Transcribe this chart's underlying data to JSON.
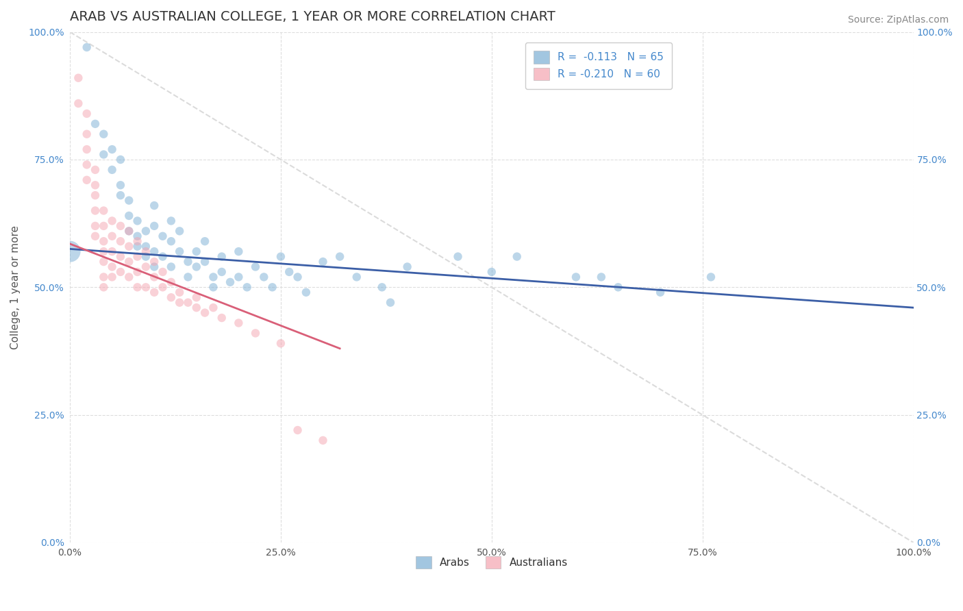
{
  "title": "ARAB VS AUSTRALIAN COLLEGE, 1 YEAR OR MORE CORRELATION CHART",
  "source": "Source: ZipAtlas.com",
  "ylabel": "College, 1 year or more",
  "xlim": [
    0.0,
    1.0
  ],
  "ylim": [
    0.0,
    1.0
  ],
  "xticks": [
    0.0,
    0.25,
    0.5,
    0.75,
    1.0
  ],
  "yticks": [
    0.0,
    0.25,
    0.5,
    0.75,
    1.0
  ],
  "xticklabels": [
    "0.0%",
    "25.0%",
    "50.0%",
    "75.0%",
    "100.0%"
  ],
  "yticklabels": [
    "0.0%",
    "25.0%",
    "50.0%",
    "75.0%",
    "100.0%"
  ],
  "blue_color": "#7BAFD4",
  "pink_color": "#F4A4B0",
  "blue_line_color": "#3B5EA6",
  "pink_line_color": "#D95F78",
  "diagonal_color": "#CCCCCC",
  "R_blue": -0.113,
  "N_blue": 65,
  "R_pink": -0.21,
  "N_pink": 60,
  "legend_label_blue": "Arabs",
  "legend_label_pink": "Australians",
  "blue_line_x": [
    0.0,
    1.0
  ],
  "blue_line_y": [
    0.575,
    0.46
  ],
  "pink_line_x": [
    0.0,
    0.32
  ],
  "pink_line_y": [
    0.585,
    0.38
  ],
  "blue_scatter": [
    [
      0.02,
      0.97
    ],
    [
      0.03,
      0.82
    ],
    [
      0.04,
      0.8
    ],
    [
      0.04,
      0.76
    ],
    [
      0.05,
      0.77
    ],
    [
      0.05,
      0.73
    ],
    [
      0.06,
      0.75
    ],
    [
      0.06,
      0.7
    ],
    [
      0.06,
      0.68
    ],
    [
      0.07,
      0.67
    ],
    [
      0.07,
      0.64
    ],
    [
      0.07,
      0.61
    ],
    [
      0.08,
      0.63
    ],
    [
      0.08,
      0.6
    ],
    [
      0.08,
      0.58
    ],
    [
      0.09,
      0.61
    ],
    [
      0.09,
      0.58
    ],
    [
      0.09,
      0.56
    ],
    [
      0.1,
      0.66
    ],
    [
      0.1,
      0.62
    ],
    [
      0.1,
      0.57
    ],
    [
      0.1,
      0.54
    ],
    [
      0.11,
      0.6
    ],
    [
      0.11,
      0.56
    ],
    [
      0.12,
      0.63
    ],
    [
      0.12,
      0.59
    ],
    [
      0.12,
      0.54
    ],
    [
      0.13,
      0.61
    ],
    [
      0.13,
      0.57
    ],
    [
      0.14,
      0.55
    ],
    [
      0.14,
      0.52
    ],
    [
      0.15,
      0.57
    ],
    [
      0.15,
      0.54
    ],
    [
      0.16,
      0.59
    ],
    [
      0.16,
      0.55
    ],
    [
      0.17,
      0.52
    ],
    [
      0.17,
      0.5
    ],
    [
      0.18,
      0.56
    ],
    [
      0.18,
      0.53
    ],
    [
      0.19,
      0.51
    ],
    [
      0.2,
      0.57
    ],
    [
      0.2,
      0.52
    ],
    [
      0.21,
      0.5
    ],
    [
      0.22,
      0.54
    ],
    [
      0.23,
      0.52
    ],
    [
      0.24,
      0.5
    ],
    [
      0.25,
      0.56
    ],
    [
      0.26,
      0.53
    ],
    [
      0.27,
      0.52
    ],
    [
      0.28,
      0.49
    ],
    [
      0.3,
      0.55
    ],
    [
      0.32,
      0.56
    ],
    [
      0.34,
      0.52
    ],
    [
      0.37,
      0.5
    ],
    [
      0.38,
      0.47
    ],
    [
      0.4,
      0.54
    ],
    [
      0.46,
      0.56
    ],
    [
      0.5,
      0.53
    ],
    [
      0.53,
      0.56
    ],
    [
      0.6,
      0.52
    ],
    [
      0.63,
      0.52
    ],
    [
      0.65,
      0.5
    ],
    [
      0.7,
      0.49
    ],
    [
      0.76,
      0.52
    ],
    [
      0.0,
      0.57
    ]
  ],
  "blue_dot_sizes": [
    80,
    80,
    80,
    80,
    80,
    80,
    80,
    80,
    80,
    80,
    80,
    80,
    80,
    80,
    80,
    80,
    80,
    80,
    80,
    80,
    80,
    80,
    80,
    80,
    80,
    80,
    80,
    80,
    80,
    80,
    80,
    80,
    80,
    80,
    80,
    80,
    80,
    80,
    80,
    80,
    80,
    80,
    80,
    80,
    80,
    80,
    80,
    80,
    80,
    80,
    80,
    80,
    80,
    80,
    80,
    80,
    80,
    80,
    80,
    80,
    80,
    80,
    80,
    80,
    500
  ],
  "pink_scatter": [
    [
      0.01,
      0.91
    ],
    [
      0.01,
      0.86
    ],
    [
      0.02,
      0.84
    ],
    [
      0.02,
      0.8
    ],
    [
      0.02,
      0.77
    ],
    [
      0.02,
      0.74
    ],
    [
      0.02,
      0.71
    ],
    [
      0.03,
      0.73
    ],
    [
      0.03,
      0.7
    ],
    [
      0.03,
      0.68
    ],
    [
      0.03,
      0.65
    ],
    [
      0.03,
      0.62
    ],
    [
      0.03,
      0.6
    ],
    [
      0.04,
      0.65
    ],
    [
      0.04,
      0.62
    ],
    [
      0.04,
      0.59
    ],
    [
      0.04,
      0.57
    ],
    [
      0.04,
      0.55
    ],
    [
      0.04,
      0.52
    ],
    [
      0.04,
      0.5
    ],
    [
      0.05,
      0.63
    ],
    [
      0.05,
      0.6
    ],
    [
      0.05,
      0.57
    ],
    [
      0.05,
      0.54
    ],
    [
      0.05,
      0.52
    ],
    [
      0.06,
      0.62
    ],
    [
      0.06,
      0.59
    ],
    [
      0.06,
      0.56
    ],
    [
      0.06,
      0.53
    ],
    [
      0.07,
      0.61
    ],
    [
      0.07,
      0.58
    ],
    [
      0.07,
      0.55
    ],
    [
      0.07,
      0.52
    ],
    [
      0.08,
      0.59
    ],
    [
      0.08,
      0.56
    ],
    [
      0.08,
      0.53
    ],
    [
      0.08,
      0.5
    ],
    [
      0.09,
      0.57
    ],
    [
      0.09,
      0.54
    ],
    [
      0.09,
      0.5
    ],
    [
      0.1,
      0.55
    ],
    [
      0.1,
      0.52
    ],
    [
      0.1,
      0.49
    ],
    [
      0.11,
      0.53
    ],
    [
      0.11,
      0.5
    ],
    [
      0.12,
      0.51
    ],
    [
      0.12,
      0.48
    ],
    [
      0.13,
      0.49
    ],
    [
      0.13,
      0.47
    ],
    [
      0.14,
      0.47
    ],
    [
      0.15,
      0.48
    ],
    [
      0.15,
      0.46
    ],
    [
      0.16,
      0.45
    ],
    [
      0.17,
      0.46
    ],
    [
      0.18,
      0.44
    ],
    [
      0.2,
      0.43
    ],
    [
      0.22,
      0.41
    ],
    [
      0.25,
      0.39
    ],
    [
      0.27,
      0.22
    ],
    [
      0.3,
      0.2
    ]
  ],
  "pink_dot_sizes": [
    80,
    80,
    80,
    80,
    80,
    80,
    80,
    80,
    80,
    80,
    80,
    80,
    80,
    80,
    80,
    80,
    80,
    80,
    80,
    80,
    80,
    80,
    80,
    80,
    80,
    80,
    80,
    80,
    80,
    80,
    80,
    80,
    80,
    80,
    80,
    80,
    80,
    80,
    80,
    80,
    80,
    80,
    80,
    80,
    80,
    80,
    80,
    80,
    80,
    80,
    80,
    80,
    80,
    80,
    80,
    80,
    80,
    80,
    80,
    80
  ],
  "background_color": "#FFFFFF",
  "grid_color": "#DDDDDD",
  "title_fontsize": 14,
  "axis_label_fontsize": 11,
  "tick_fontsize": 10,
  "source_fontsize": 10,
  "legend_fontsize": 11
}
